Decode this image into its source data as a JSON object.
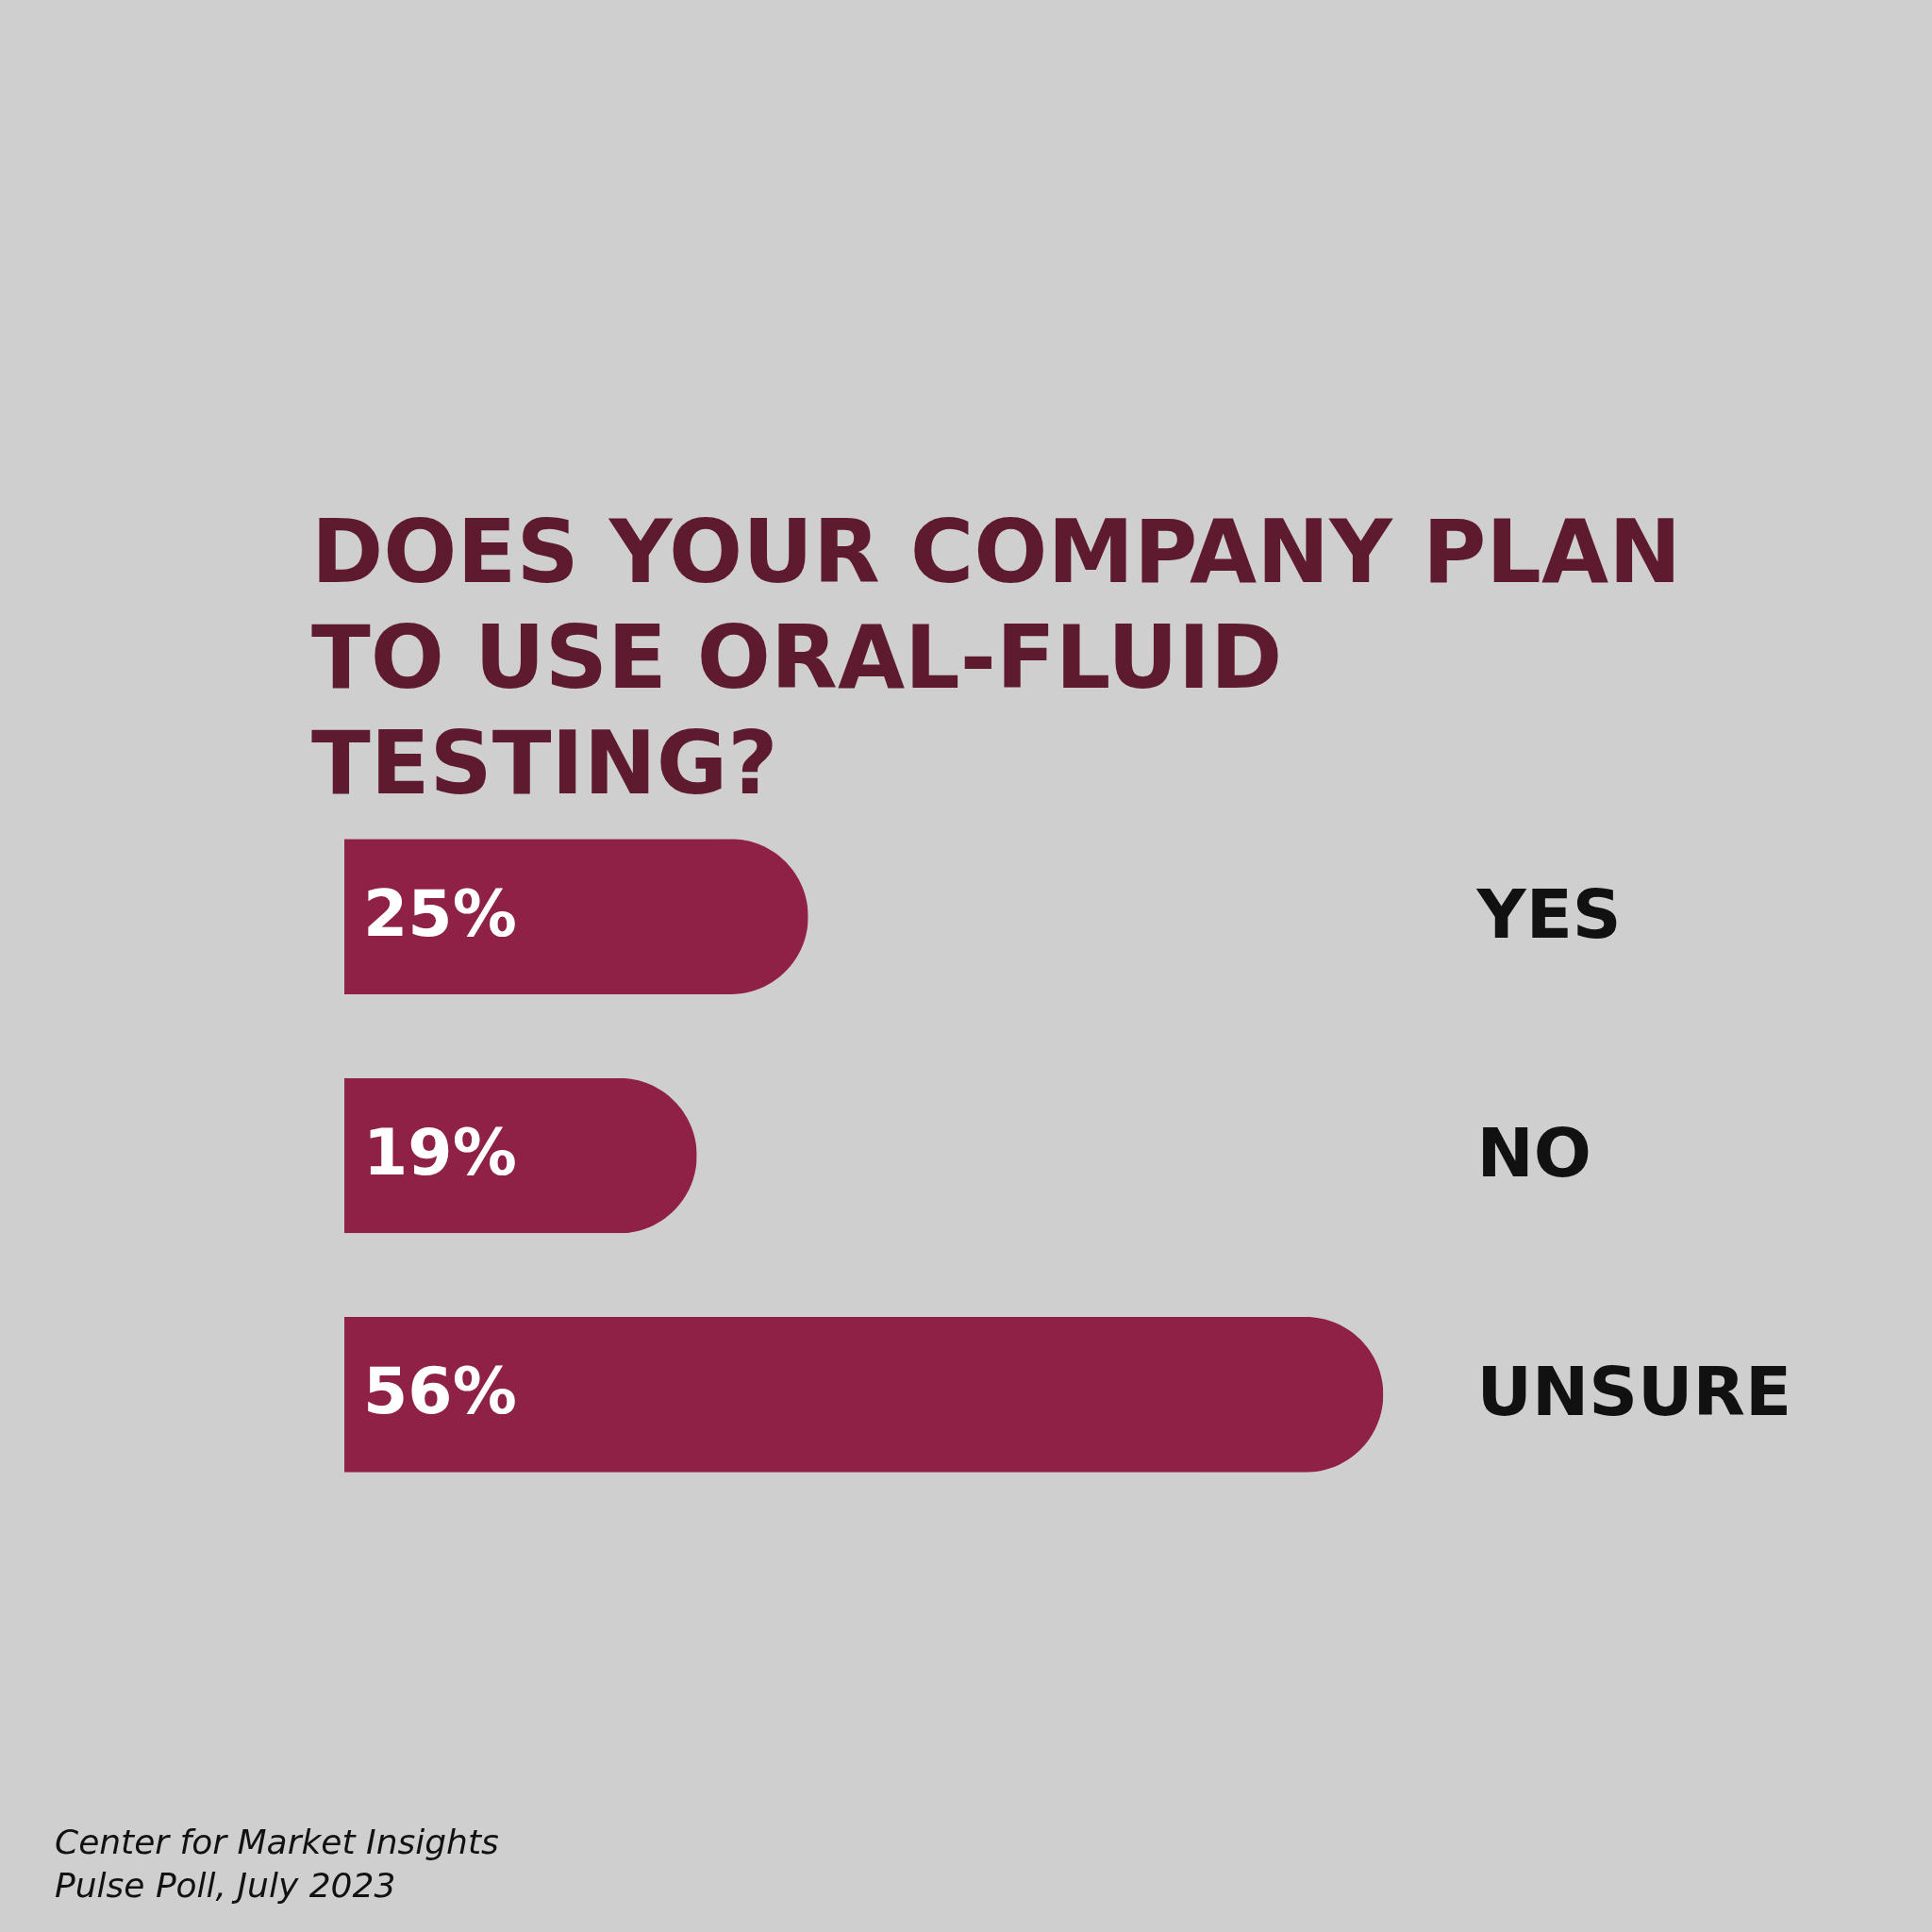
{
  "chart_data": {
    "type": "bar",
    "orientation": "horizontal",
    "title": "DOES YOUR COMPANY PLAN TO USE ORAL-FLUID TESTING?",
    "categories": [
      "YES",
      "NO",
      "UNSURE"
    ],
    "values": [
      25,
      19,
      56
    ],
    "value_labels": [
      "25%",
      "19%",
      "56%"
    ],
    "color": "#8e2145",
    "annotations": [
      "Center for Market Insights",
      "Pulse Poll, July 2023"
    ]
  }
}
